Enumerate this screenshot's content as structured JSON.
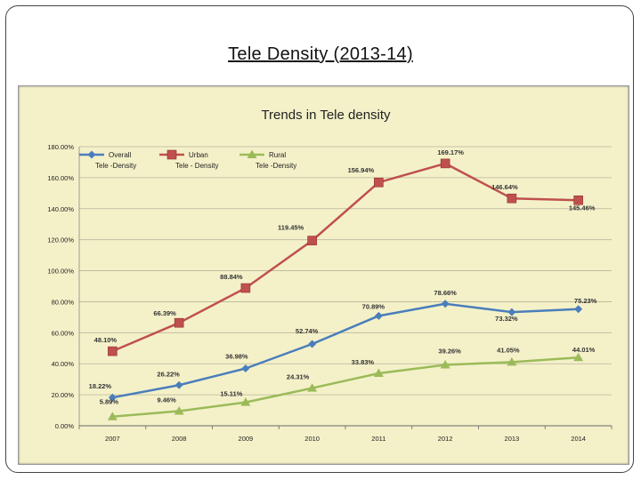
{
  "slide": {
    "title": "Tele Density (2013-14)"
  },
  "chart_data": {
    "type": "line",
    "title": "Trends in Tele density",
    "categories": [
      "2007",
      "2008",
      "2009",
      "2010",
      "2011",
      "2012",
      "2013",
      "2014"
    ],
    "ylim": [
      0,
      180
    ],
    "yticks": [
      0,
      20,
      40,
      60,
      80,
      100,
      120,
      140,
      160,
      180
    ],
    "ytick_labels": [
      "0.00%",
      "20.00%",
      "40.00%",
      "60.00%",
      "80.00%",
      "100.00%",
      "120.00%",
      "140.00%",
      "160.00%",
      "180.00%"
    ],
    "grid": "horizontal",
    "legend_position": "top-left",
    "series": [
      {
        "name": "Overall Tele -Density",
        "legend_lines": [
          "Overall",
          "Tele    -Density"
        ],
        "color": "#4a7ebb",
        "marker": "diamond",
        "values": [
          18.22,
          26.22,
          36.98,
          52.74,
          70.89,
          78.66,
          73.32,
          75.23
        ],
        "labels": [
          "18.22%",
          "26.22%",
          "36.98%",
          "52.74%",
          "70.89%",
          "78.66%",
          "73.32%",
          "75.23%"
        ]
      },
      {
        "name": "Urban Tele - Density",
        "legend_lines": [
          "Urban",
          "Tele    - Density"
        ],
        "color": "#c0504d",
        "marker": "square",
        "values": [
          48.1,
          66.39,
          88.84,
          119.45,
          156.94,
          169.17,
          146.64,
          145.46
        ],
        "labels": [
          "48.10%",
          "66.39%",
          "88.84%",
          "119.45%",
          "156.94%",
          "169.17%",
          "146.64%",
          "145.46%"
        ]
      },
      {
        "name": "Rural Tele -Density",
        "legend_lines": [
          "Rural",
          "Tele    -Density"
        ],
        "color": "#9bbb59",
        "marker": "triangle",
        "values": [
          5.89,
          9.46,
          15.11,
          24.31,
          33.83,
          39.26,
          41.05,
          44.01
        ],
        "labels": [
          "5.89%",
          "9.46%",
          "15.11%",
          "24.31%",
          "33.83%",
          "39.26%",
          "41.05%",
          "44.01%"
        ]
      }
    ]
  }
}
